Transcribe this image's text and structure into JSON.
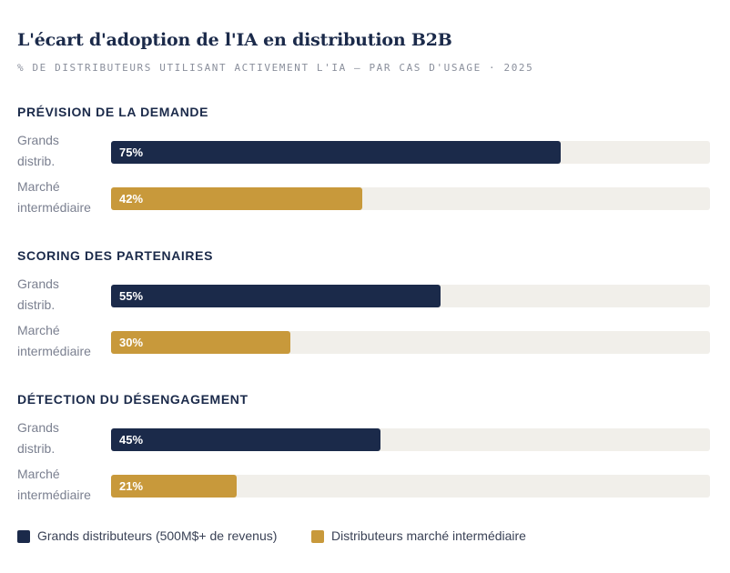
{
  "title": "L'écart d'adoption de l'IA en distribution B2B",
  "subtitle": "% DE DISTRIBUTEURS UTILISANT ACTIVEMENT L'IA — PAR CAS D'USAGE · 2025",
  "colors": {
    "big": "#1b2a4a",
    "mid": "#c8993b",
    "track": "#f1efea"
  },
  "chart_data": {
    "type": "bar",
    "orientation": "horizontal",
    "title": "L'écart d'adoption de l'IA en distribution B2B",
    "subtitle": "% DE DISTRIBUTEURS UTILISANT ACTIVEMENT L'IA — PAR CAS D'USAGE · 2025",
    "xlim": [
      0,
      100
    ],
    "unit": "%",
    "groups": [
      {
        "title": "PRÉVISION DE LA DEMANDE",
        "rows": [
          {
            "label_line1": "Grands",
            "label_line2": "distrib.",
            "value": 75,
            "value_label": "75%",
            "series": "big"
          },
          {
            "label_line1": "Marché",
            "label_line2": "intermédiaire",
            "value": 42,
            "value_label": "42%",
            "series": "mid"
          }
        ]
      },
      {
        "title": "SCORING DES PARTENAIRES",
        "rows": [
          {
            "label_line1": "Grands",
            "label_line2": "distrib.",
            "value": 55,
            "value_label": "55%",
            "series": "big"
          },
          {
            "label_line1": "Marché",
            "label_line2": "intermédiaire",
            "value": 30,
            "value_label": "30%",
            "series": "mid"
          }
        ]
      },
      {
        "title": "DÉTECTION DU DÉSENGAGEMENT",
        "rows": [
          {
            "label_line1": "Grands",
            "label_line2": "distrib.",
            "value": 45,
            "value_label": "45%",
            "series": "big"
          },
          {
            "label_line1": "Marché",
            "label_line2": "intermédiaire",
            "value": 21,
            "value_label": "21%",
            "series": "mid"
          }
        ]
      }
    ],
    "legend": [
      {
        "name": "Grands distributeurs (500M$+ de revenus)",
        "series": "big",
        "color": "#1b2a4a"
      },
      {
        "name": "Distributeurs marché intermédiaire",
        "series": "mid",
        "color": "#c8993b"
      }
    ],
    "legend_position": "bottom-left"
  }
}
